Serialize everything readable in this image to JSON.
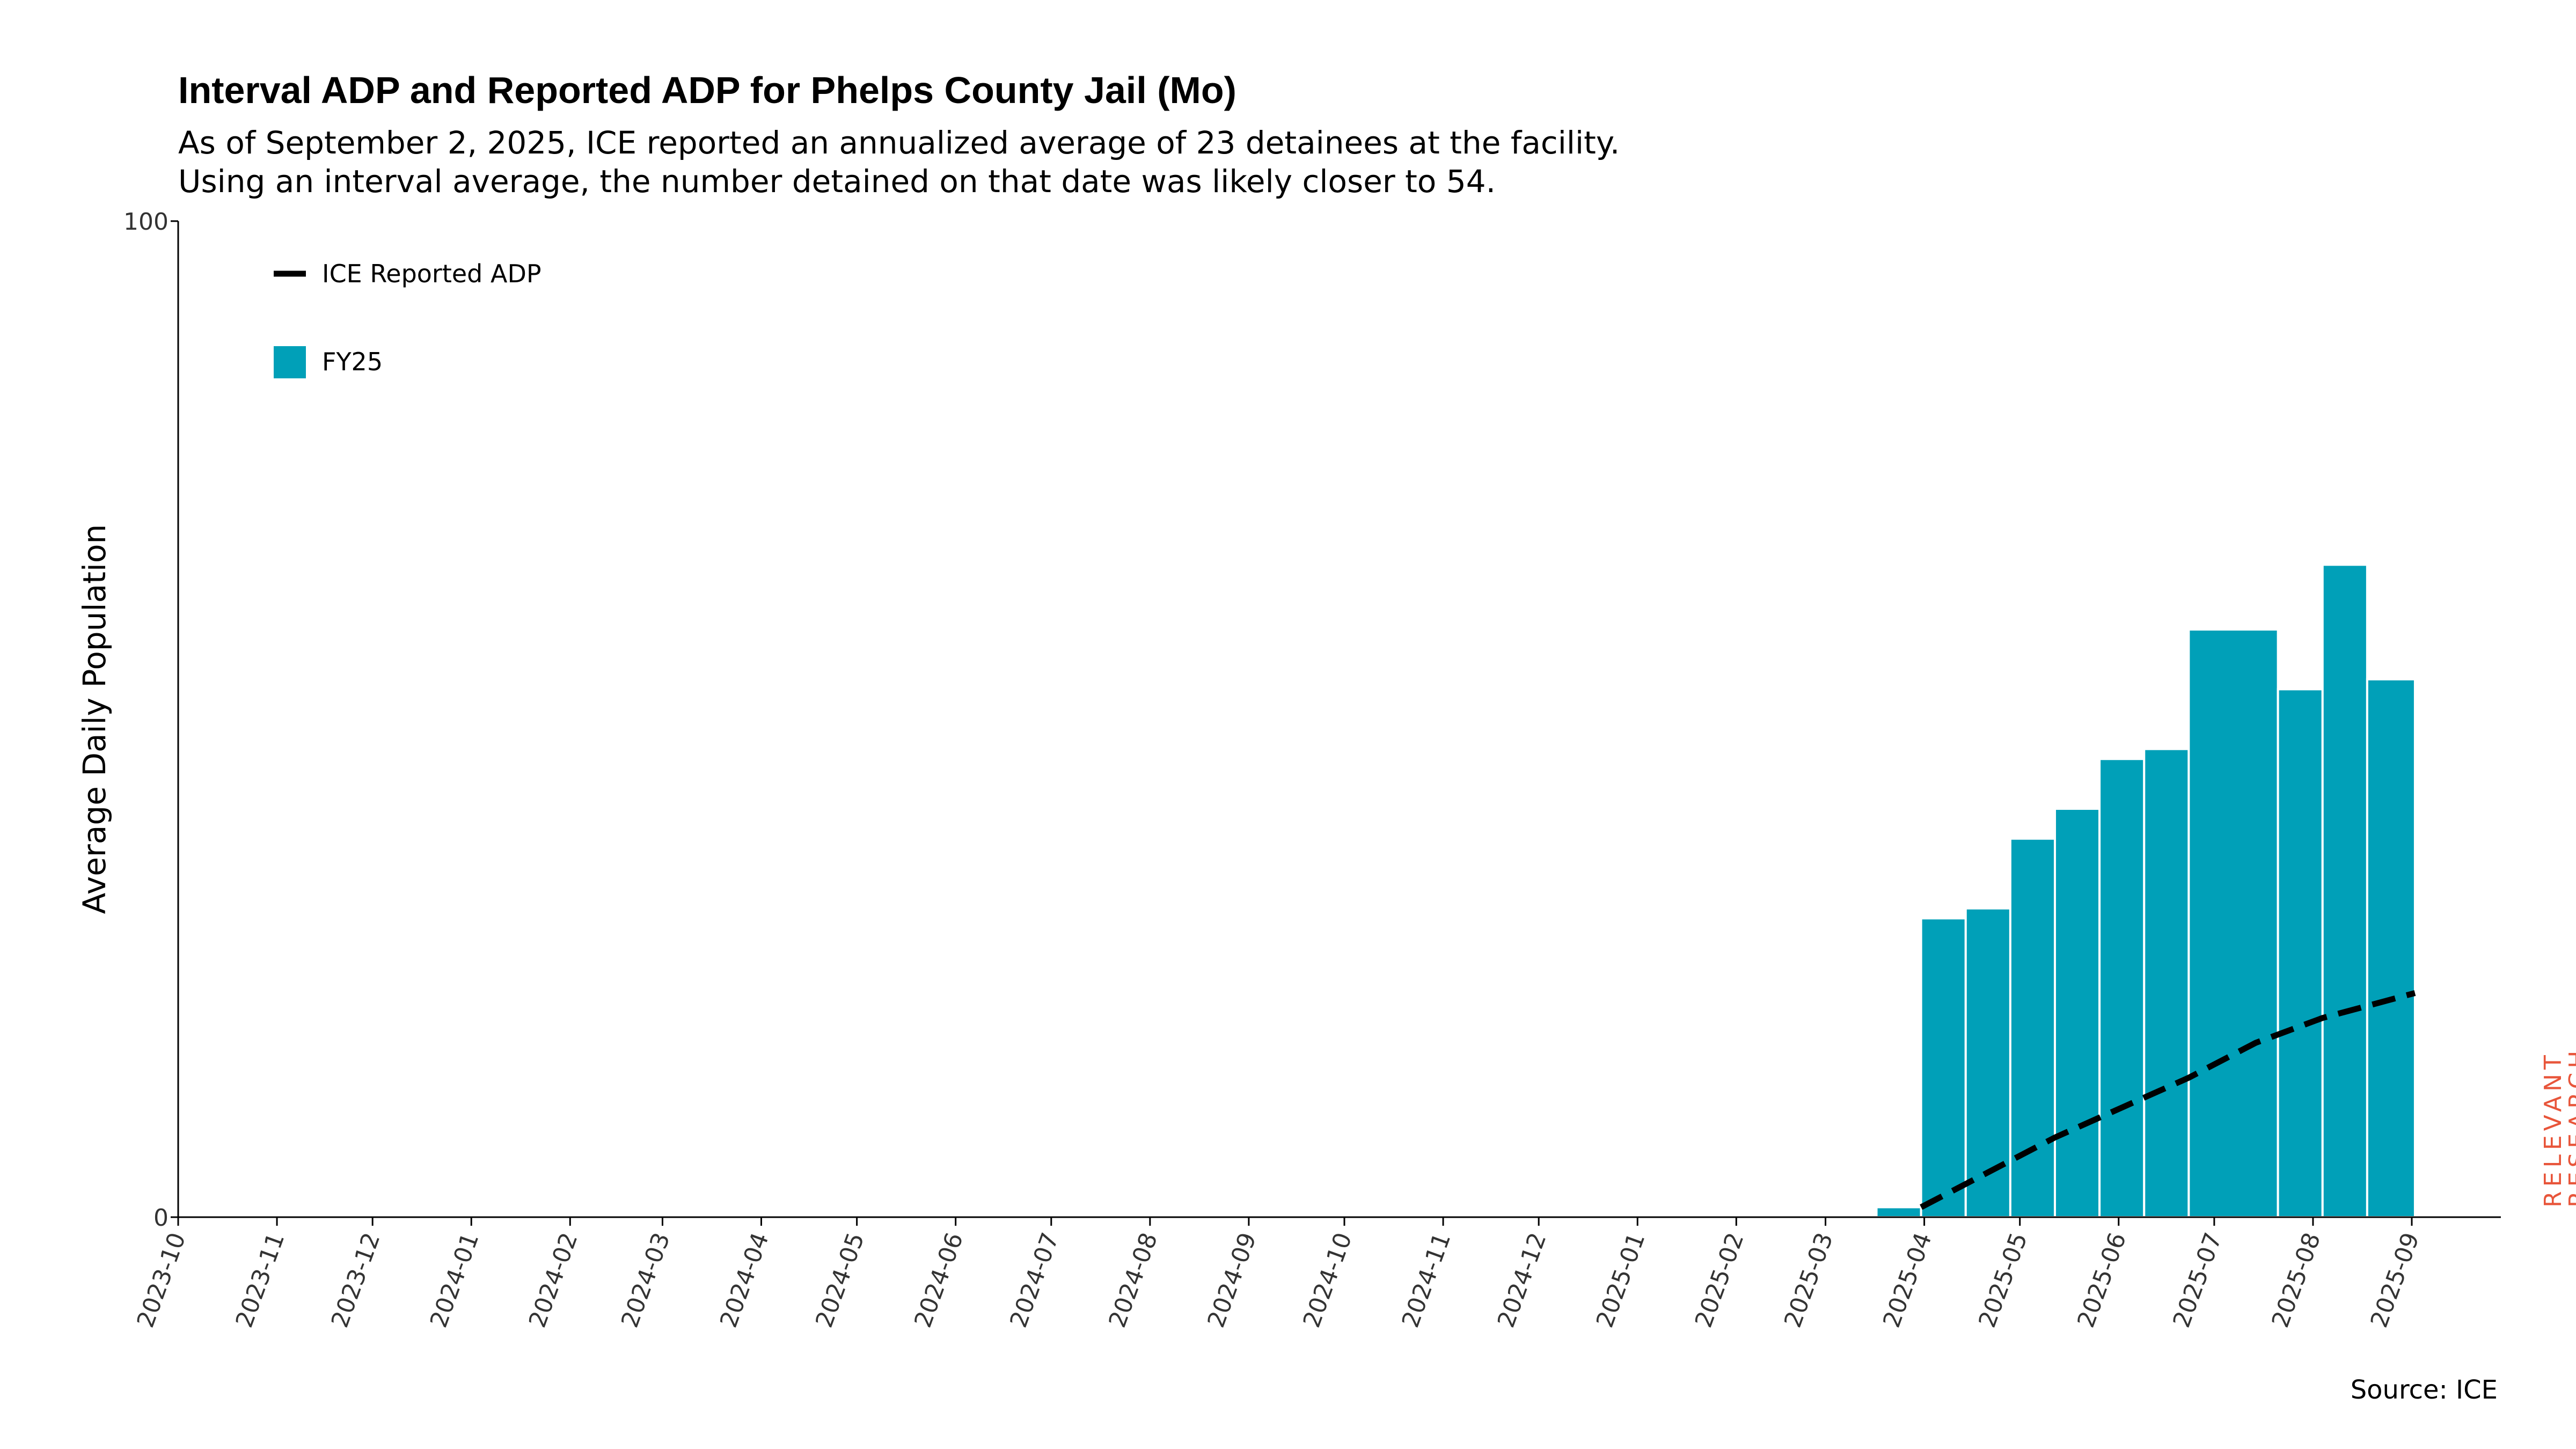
{
  "title": "Interval ADP and Reported ADP for Phelps County Jail (Mo)",
  "subtitle_line1": "As of September 2, 2025, ICE reported an annualized average of 23 detainees at the facility.",
  "subtitle_line2": "Using an interval average, the number detained on that date was likely closer to 54.",
  "source": "Source: ICE",
  "logo_text": "RELEVANT RESEARCH",
  "colors": {
    "bar": "#00a0b8",
    "line": "#000000",
    "logo": "#e8553a"
  },
  "chart_data": {
    "type": "bar",
    "title": "Interval ADP and Reported ADP for Phelps County Jail (Mo)",
    "ylabel": "Average Daily Population",
    "xlabel": "",
    "ylim": [
      0,
      100
    ],
    "yticks": [
      0,
      100
    ],
    "xlim": [
      "2023-10-01",
      "2025-09-01"
    ],
    "xticks": [
      "2023-10",
      "2023-11",
      "2023-12",
      "2024-01",
      "2024-02",
      "2024-03",
      "2024-04",
      "2024-05",
      "2024-06",
      "2024-07",
      "2024-08",
      "2024-09",
      "2024-10",
      "2024-11",
      "2024-12",
      "2025-01",
      "2025-02",
      "2025-03",
      "2025-04",
      "2025-05",
      "2025-06",
      "2025-07",
      "2025-08",
      "2025-09"
    ],
    "legend": {
      "placement": "top-left",
      "entries": [
        "ICE Reported ADP",
        "FY25"
      ]
    },
    "grid": false,
    "bars": {
      "name": "FY25",
      "intervals": [
        {
          "start": "2025-03-17",
          "end": "2025-03-31",
          "value": 1
        },
        {
          "start": "2025-03-31",
          "end": "2025-04-14",
          "value": 30
        },
        {
          "start": "2025-04-14",
          "end": "2025-04-28",
          "value": 31
        },
        {
          "start": "2025-04-28",
          "end": "2025-05-12",
          "value": 38
        },
        {
          "start": "2025-05-12",
          "end": "2025-05-26",
          "value": 41
        },
        {
          "start": "2025-05-26",
          "end": "2025-06-09",
          "value": 46
        },
        {
          "start": "2025-06-09",
          "end": "2025-06-23",
          "value": 47
        },
        {
          "start": "2025-06-23",
          "end": "2025-07-21",
          "value": 59
        },
        {
          "start": "2025-07-21",
          "end": "2025-08-04",
          "value": 53
        },
        {
          "start": "2025-08-04",
          "end": "2025-08-18",
          "value": 65.5
        },
        {
          "start": "2025-08-18",
          "end": "2025-09-02",
          "value": 54
        }
      ]
    },
    "line": {
      "name": "ICE Reported ADP",
      "style": "dashed",
      "points": [
        {
          "x": "2025-03-31",
          "y": 1
        },
        {
          "x": "2025-04-21",
          "y": 4.5
        },
        {
          "x": "2025-05-12",
          "y": 8
        },
        {
          "x": "2025-06-02",
          "y": 11
        },
        {
          "x": "2025-06-23",
          "y": 14
        },
        {
          "x": "2025-07-14",
          "y": 17.5
        },
        {
          "x": "2025-08-04",
          "y": 20
        },
        {
          "x": "2025-09-02",
          "y": 22.5
        }
      ]
    }
  }
}
